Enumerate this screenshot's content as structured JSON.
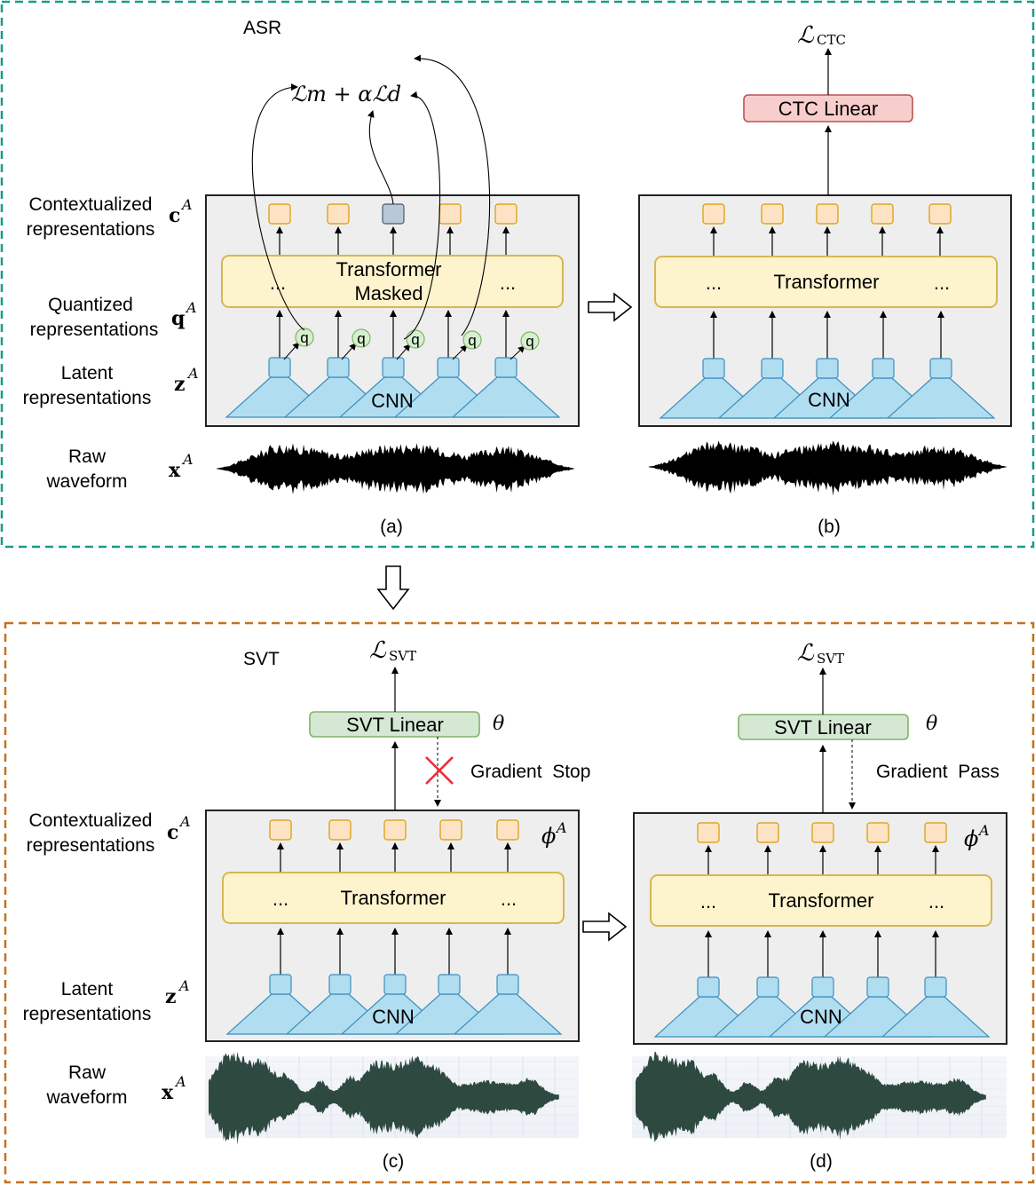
{
  "asr": {
    "title": "ASR",
    "loss_a": "ℒm + αℒd",
    "loss_b_main": "ℒ",
    "loss_b_sub": "CTC",
    "ctc_linear": "CTC Linear",
    "panel_a": {
      "transformer_line1": "Transformer",
      "transformer_line2": "Masked",
      "dots_left": "...",
      "dots_right": "...",
      "cnn": "CNN",
      "q": "q",
      "caption": "(a)"
    },
    "panel_b": {
      "transformer": "Transformer",
      "dots_left": "...",
      "dots_right": "...",
      "cnn": "CNN",
      "caption": "(b)"
    },
    "rows": {
      "contextualized_1": "Contextualized",
      "contextualized_2": "representations",
      "quantized_1": "Quantized",
      "quantized_2": "representations",
      "latent_1": "Latent",
      "latent_2": "representations",
      "raw_1": "Raw",
      "raw_2": "waveform"
    }
  },
  "svt": {
    "title": "SVT",
    "loss_main": "ℒ",
    "loss_sub": "SVT",
    "svt_linear": "SVT Linear",
    "theta": "θ",
    "phi": "ϕ",
    "gradient_stop": "Gradient  Stop",
    "gradient_pass": "Gradient  Pass",
    "panel_c": {
      "transformer": "Transformer",
      "dots_left": "...",
      "dots_right": "...",
      "cnn": "CNN",
      "caption": "(c)"
    },
    "panel_d": {
      "transformer": "Transformer",
      "dots_left": "...",
      "dots_right": "...",
      "cnn": "CNN",
      "caption": "(d)"
    },
    "rows": {
      "contextualized_1": "Contextualized",
      "contextualized_2": "representations",
      "latent_1": "Latent",
      "latent_2": "representations",
      "raw_1": "Raw",
      "raw_2": "waveform"
    }
  },
  "symbols": {
    "c": "c",
    "q": "q",
    "z": "z",
    "x": "x",
    "sup": "A"
  },
  "colors": {
    "asr_border": "#1a9a8e",
    "svt_border": "#c8701a",
    "panel_fill": "#eeeeee",
    "transformer_fill": "#fdf3cd",
    "transformer_stroke": "#d6b656",
    "token_fill": "#fde3c4",
    "token_stroke": "#d79b00",
    "masked_token_fill": "#b8c8d8",
    "cnn_fill": "#b1ddf0",
    "cnn_stroke": "#3a8fbf",
    "q_fill": "#d5f0cf",
    "q_stroke": "#82b366",
    "ctc_fill": "#f8cecc",
    "ctc_stroke": "#b85450",
    "svt_linear_fill": "#d5e8d4",
    "svt_linear_stroke": "#82b366",
    "waveform_asr": "#000000",
    "waveform_svt": "#2e4a40",
    "stop_cross": "#e8303a"
  }
}
